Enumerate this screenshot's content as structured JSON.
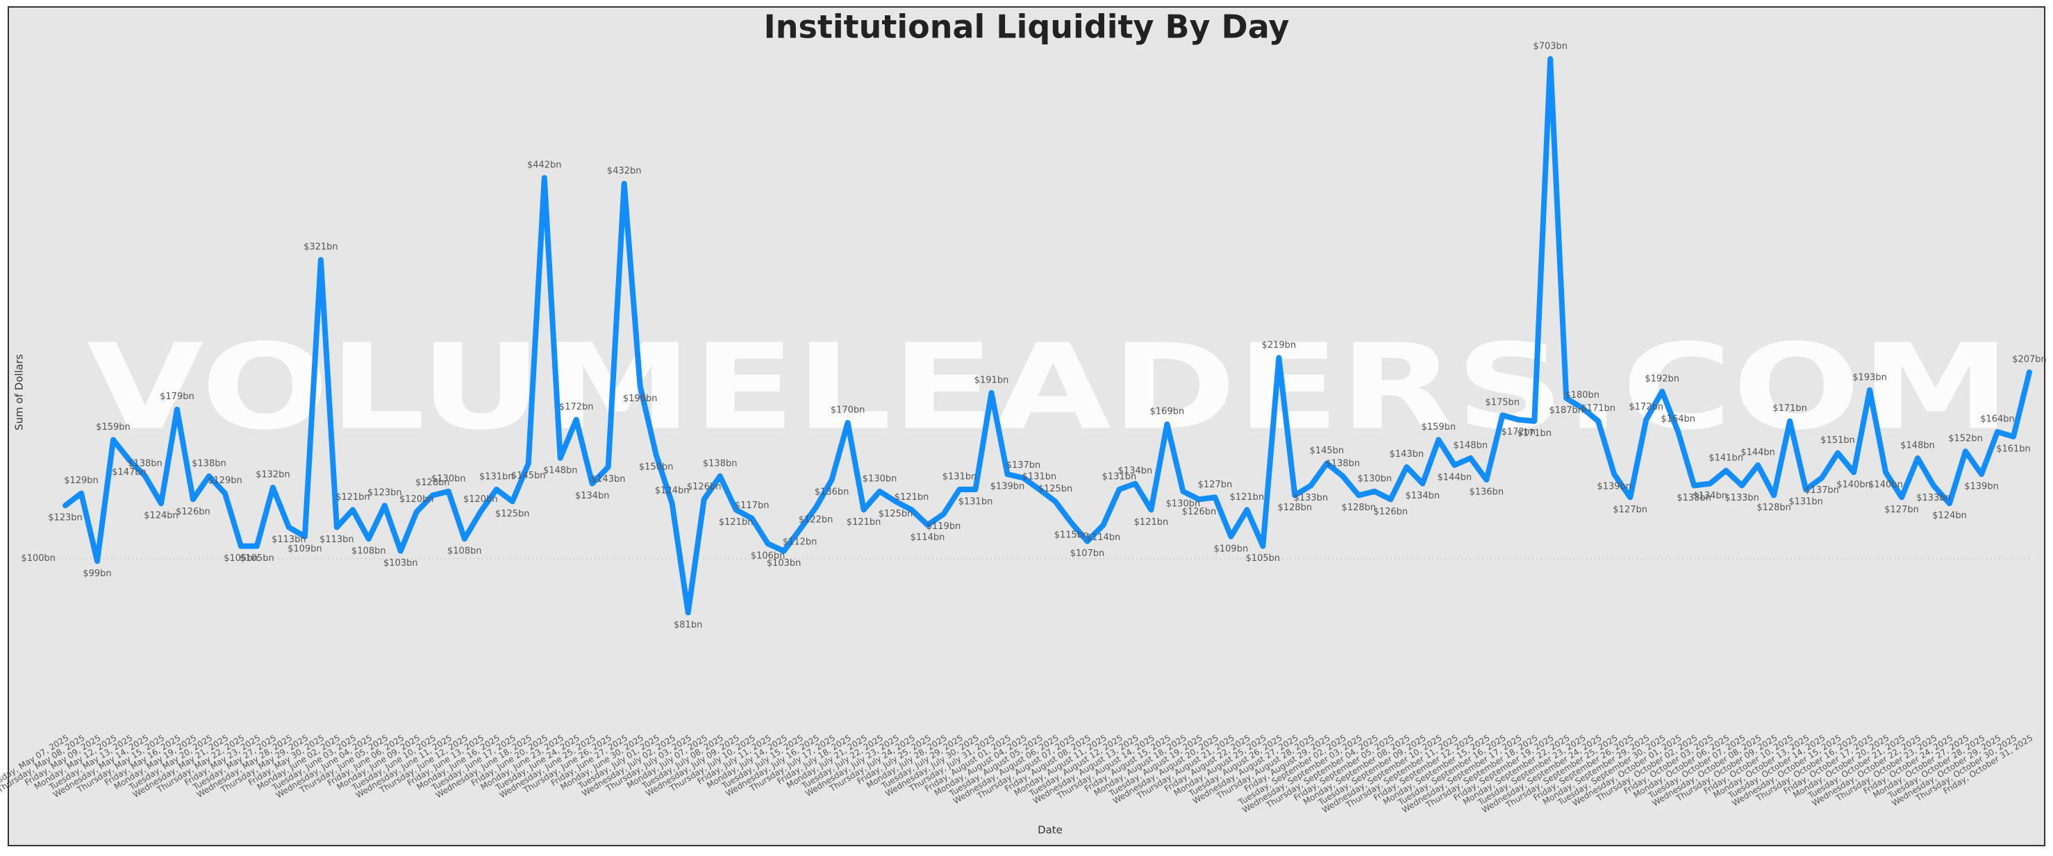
{
  "chart_data": {
    "type": "line",
    "title": "Institutional Liquidity By Day",
    "x_label": "Date",
    "y_label": "Sum of Dollars",
    "watermark": "VOLUMELEADERS.COM",
    "log_scale": true,
    "grid": true,
    "ylim": [
      52,
      720
    ],
    "yticks": [
      {
        "value": 100,
        "label": "$100bn"
      }
    ],
    "categories": [
      "Wednesday, May 07, 2025",
      "Thursday, May 08, 2025",
      "Friday, May 09, 2025",
      "Monday, May 12, 2025",
      "Tuesday, May 13, 2025",
      "Wednesday, May 14, 2025",
      "Thursday, May 15, 2025",
      "Friday, May 16, 2025",
      "Monday, May 19, 2025",
      "Tuesday, May 20, 2025",
      "Wednesday, May 21, 2025",
      "Thursday, May 22, 2025",
      "Friday, May 23, 2025",
      "Tuesday, May 27, 2025",
      "Wednesday, May 28, 2025",
      "Thursday, May 29, 2025",
      "Friday, May 30, 2025",
      "Monday, June 02, 2025",
      "Tuesday, June 03, 2025",
      "Wednesday, June 04, 2025",
      "Thursday, June 05, 2025",
      "Friday, June 06, 2025",
      "Monday, June 09, 2025",
      "Tuesday, June 10, 2025",
      "Wednesday, June 11, 2025",
      "Thursday, June 12, 2025",
      "Friday, June 13, 2025",
      "Monday, June 16, 2025",
      "Tuesday, June 17, 2025",
      "Wednesday, June 18, 2025",
      "Friday, June 20, 2025",
      "Monday, June 23, 2025",
      "Tuesday, June 24, 2025",
      "Wednesday, June 25, 2025",
      "Thursday, June 26, 2025",
      "Friday, June 27, 2025",
      "Monday, June 30, 2025",
      "Tuesday, July 01, 2025",
      "Wednesday, July 02, 2025",
      "Thursday, July 03, 2025",
      "Monday, July 07, 2025",
      "Tuesday, July 08, 2025",
      "Wednesday, July 09, 2025",
      "Thursday, July 10, 2025",
      "Friday, July 11, 2025",
      "Monday, July 14, 2025",
      "Tuesday, July 15, 2025",
      "Wednesday, July 16, 2025",
      "Thursday, July 17, 2025",
      "Friday, July 18, 2025",
      "Monday, July 21, 2025",
      "Tuesday, July 22, 2025",
      "Wednesday, July 23, 2025",
      "Thursday, July 24, 2025",
      "Friday, July 25, 2025",
      "Monday, July 28, 2025",
      "Tuesday, July 29, 2025",
      "Wednesday, July 30, 2025",
      "Thursday, July 31, 2025",
      "Friday, August 01, 2025",
      "Monday, August 04, 2025",
      "Tuesday, August 05, 2025",
      "Wednesday, August 06, 2025",
      "Thursday, August 07, 2025",
      "Friday, August 08, 2025",
      "Monday, August 11, 2025",
      "Tuesday, August 12, 2025",
      "Wednesday, August 13, 2025",
      "Thursday, August 14, 2025",
      "Friday, August 15, 2025",
      "Monday, August 18, 2025",
      "Tuesday, August 19, 2025",
      "Wednesday, August 20, 2025",
      "Thursday, August 21, 2025",
      "Friday, August 22, 2025",
      "Monday, August 25, 2025",
      "Tuesday, August 26, 2025",
      "Wednesday, August 27, 2025",
      "Thursday, August 28, 2025",
      "Friday, August 29, 2025",
      "Tuesday, September 02, 2025",
      "Wednesday, September 03, 2025",
      "Thursday, September 04, 2025",
      "Friday, September 05, 2025",
      "Monday, September 08, 2025",
      "Tuesday, September 09, 2025",
      "Wednesday, September 10, 2025",
      "Thursday, September 11, 2025",
      "Friday, September 12, 2025",
      "Monday, September 15, 2025",
      "Tuesday, September 16, 2025",
      "Wednesday, September 17, 2025",
      "Thursday, September 18, 2025",
      "Friday, September 19, 2025",
      "Monday, September 22, 2025",
      "Tuesday, September 23, 2025",
      "Wednesday, September 24, 2025",
      "Thursday, September 25, 2025",
      "Friday, September 26, 2025",
      "Monday, September 29, 2025",
      "Tuesday, September 30, 2025",
      "Wednesday, October 01, 2025",
      "Thursday, October 02, 2025",
      "Friday, October 03, 2025",
      "Monday, October 06, 2025",
      "Tuesday, October 07, 2025",
      "Wednesday, October 08, 2025",
      "Thursday, October 09, 2025",
      "Friday, October 10, 2025",
      "Monday, October 13, 2025",
      "Tuesday, October 14, 2025",
      "Wednesday, October 15, 2025",
      "Thursday, October 16, 2025",
      "Friday, October 17, 2025",
      "Monday, October 20, 2025",
      "Tuesday, October 21, 2025",
      "Wednesday, October 22, 2025",
      "Thursday, October 23, 2025",
      "Friday, October 24, 2025",
      "Monday, October 27, 2025",
      "Tuesday, October 28, 2025",
      "Wednesday, October 29, 2025",
      "Thursday, October 30, 2025",
      "Friday, October 31, 2025"
    ],
    "series": [
      {
        "name": "Sum of Dollars",
        "color": "#118dff",
        "values": [
          123,
          129,
          99,
          159,
          147,
          138,
          124,
          179,
          126,
          138,
          129,
          105,
          105,
          132,
          113,
          109,
          321,
          113,
          121,
          108,
          123,
          103,
          120,
          128,
          130,
          108,
          120,
          131,
          125,
          145,
          442,
          148,
          172,
          134,
          143,
          432,
          196,
          150,
          124,
          81,
          126,
          138,
          121,
          117,
          106,
          103,
          112,
          122,
          136,
          170,
          121,
          130,
          125,
          121,
          114,
          119,
          131,
          131,
          191,
          139,
          137,
          131,
          125,
          115,
          107,
          114,
          131,
          134,
          121,
          169,
          130,
          126,
          127,
          109,
          121,
          105,
          219,
          128,
          133,
          145,
          138,
          128,
          130,
          126,
          143,
          134,
          159,
          144,
          148,
          136,
          175,
          172,
          171,
          703,
          187,
          180,
          171,
          139,
          127,
          172,
          192,
          164,
          133,
          134,
          141,
          133,
          144,
          128,
          171,
          131,
          137,
          151,
          140,
          193,
          140,
          127,
          148,
          133,
          124,
          152,
          139,
          164,
          161,
          207
        ],
        "value_labels": [
          "$123bn",
          "$129bn",
          "$99bn",
          "$159bn",
          "$147bn",
          "$138bn",
          "$124bn",
          "$179bn",
          "$126bn",
          "$138bn",
          "$129bn",
          "$105bn",
          "$105bn",
          "$132bn",
          "$113bn",
          "$109bn",
          "$321bn",
          "$113bn",
          "$121bn",
          "$108bn",
          "$123bn",
          "$103bn",
          "$120bn",
          "$128bn",
          "$130bn",
          "$108bn",
          "$120bn",
          "$131bn",
          "$125bn",
          "$145bn",
          "$442bn",
          "$148bn",
          "$172bn",
          "$134bn",
          "$143bn",
          "$432bn",
          "$196bn",
          "$150bn",
          "$124bn",
          "$81bn",
          "$126bn",
          "$138bn",
          "$121bn",
          "$117bn",
          "$106bn",
          "$103bn",
          "$112bn",
          "$122bn",
          "$136bn",
          "$170bn",
          "$121bn",
          "$130bn",
          "$125bn",
          "$121bn",
          "$114bn",
          "$119bn",
          "$131bn",
          "$131bn",
          "$191bn",
          "$139bn",
          "$137bn",
          "$131bn",
          "$125bn",
          "$115bn",
          "$107bn",
          "$114bn",
          "$131bn",
          "$134bn",
          "$121bn",
          "$169bn",
          "$130bn",
          "$126bn",
          "$127bn",
          "$109bn",
          "$121bn",
          "$105bn",
          "$219bn",
          "$128bn",
          "$133bn",
          "$145bn",
          "$138bn",
          "$128bn",
          "$130bn",
          "$126bn",
          "$143bn",
          "$134bn",
          "$159bn",
          "$144bn",
          "$148bn",
          "$136bn",
          "$175bn",
          "$172bn",
          "$171bn",
          "$703bn",
          "$187bn",
          "$180bn",
          "$171bn",
          "$139bn",
          "$127bn",
          "$172bn",
          "$192bn",
          "$164bn",
          "$133bn",
          "$134bn",
          "$141bn",
          "$133bn",
          "$144bn",
          "$128bn",
          "$171bn",
          "$131bn",
          "$137bn",
          "$151bn",
          "$140bn",
          "$193bn",
          "$140bn",
          "$127bn",
          "$148bn",
          "$133bn",
          "$124bn",
          "$152bn",
          "$139bn",
          "$164bn",
          "$161bn",
          "$207bn"
        ]
      }
    ]
  }
}
